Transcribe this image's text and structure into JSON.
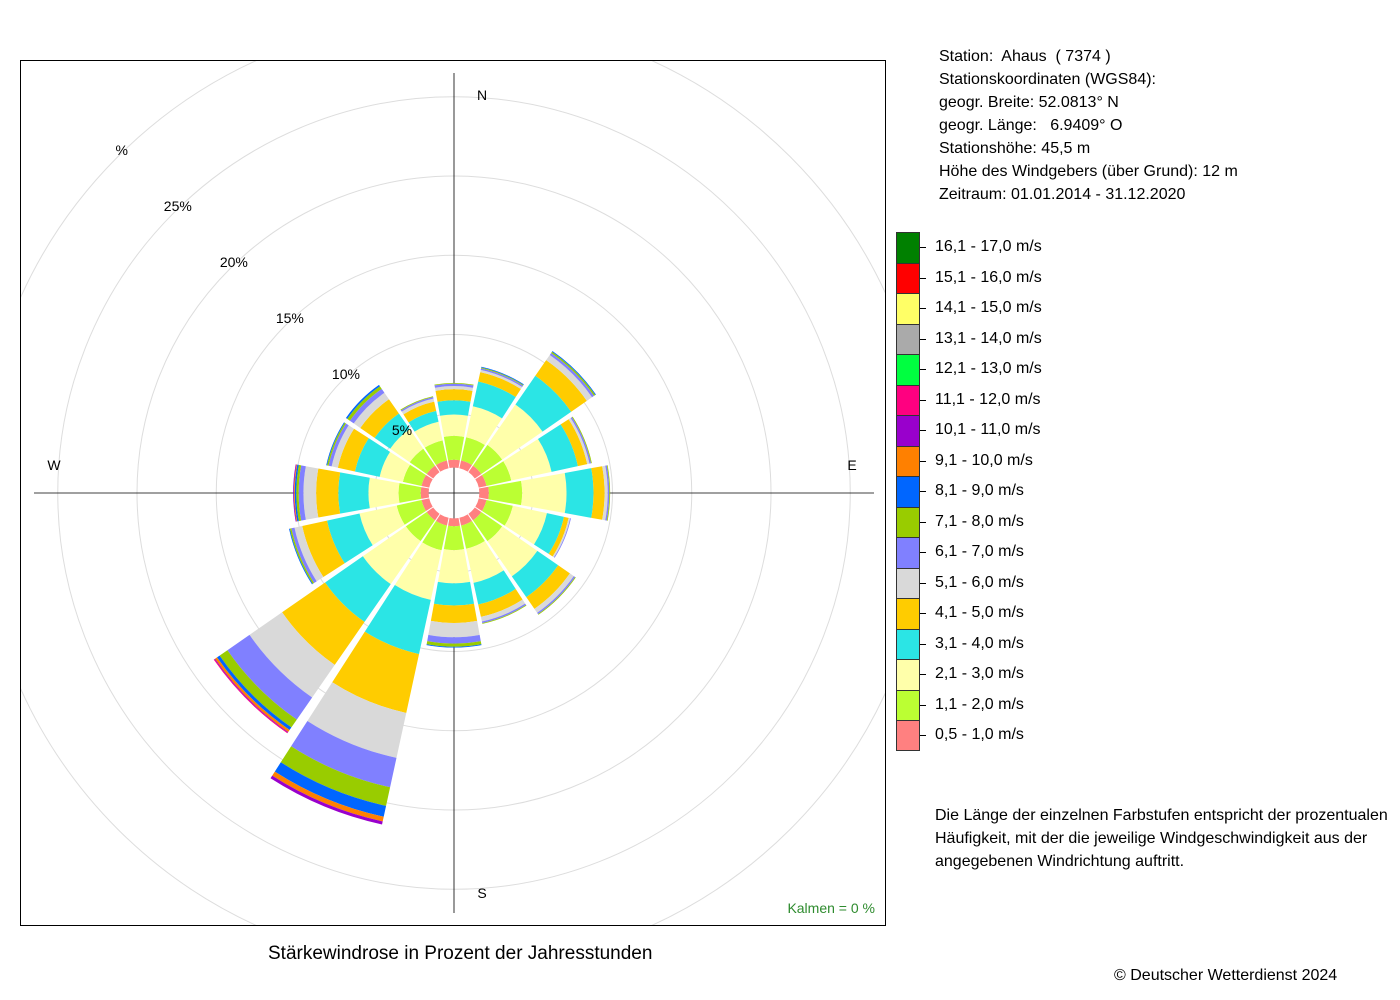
{
  "chart_data": {
    "type": "windrose",
    "title": "Stärkewindrose in Prozent der Jahresstunden",
    "directions": [
      "N",
      "NNE",
      "NE",
      "ENE",
      "E",
      "ESE",
      "SE",
      "SSE",
      "S",
      "SSW",
      "SW",
      "WSW",
      "W",
      "WNW",
      "NW",
      "NNW"
    ],
    "direction_labels": {
      "N": "N",
      "E": "E",
      "S": "S",
      "W": "W"
    },
    "radial_axis": {
      "unit": "%",
      "max": 30,
      "gridlines": [
        5,
        10,
        15,
        20,
        25,
        30
      ],
      "tick_labels": [
        "5%",
        "10%",
        "15%",
        "20%",
        "25%",
        "%"
      ]
    },
    "calm": "Kalmen  =  0 %",
    "speed_classes": [
      {
        "label": "0,5 - 1,0 m/s",
        "color": "#FF8080"
      },
      {
        "label": "1,1 - 2,0 m/s",
        "color": "#BBFF33"
      },
      {
        "label": "2,1 - 3,0 m/s",
        "color": "#FFFFAA"
      },
      {
        "label": "3,1 - 4,0 m/s",
        "color": "#2BE5E5"
      },
      {
        "label": "4,1 - 5,0 m/s",
        "color": "#FFCC00"
      },
      {
        "label": "5,1 - 6,0 m/s",
        "color": "#D9D9D9"
      },
      {
        "label": "6,1 - 7,0 m/s",
        "color": "#8080FF"
      },
      {
        "label": "7,1 - 8,0 m/s",
        "color": "#99CC00"
      },
      {
        "label": "8,1 - 9,0 m/s",
        "color": "#0066FF"
      },
      {
        "label": "9,1 - 10,0 m/s",
        "color": "#FF8000"
      },
      {
        "label": "10,1 - 11,0 m/s",
        "color": "#9900CC"
      },
      {
        "label": "11,1 - 12,0 m/s",
        "color": "#FF0080"
      },
      {
        "label": "12,1 - 13,0 m/s",
        "color": "#00FF40"
      },
      {
        "label": "13,1 - 14,0 m/s",
        "color": "#AAAAAA"
      },
      {
        "label": "14,1 - 15,0 m/s",
        "color": "#FFFF66"
      },
      {
        "label": "15,1 - 16,0 m/s",
        "color": "#FF0000"
      },
      {
        "label": "16,1 - 17,0 m/s",
        "color": "#008000"
      }
    ],
    "inner_radius": 1.6,
    "series": [
      {
        "direction": "N",
        "values": [
          0.5,
          1.5,
          1.35,
          0.9,
          0.7,
          0.2,
          0.15,
          0.05,
          0,
          0,
          0,
          0,
          0,
          0,
          0,
          0,
          0
        ]
      },
      {
        "direction": "NNE",
        "values": [
          0.5,
          1.5,
          2.0,
          1.6,
          0.6,
          0.15,
          0.1,
          0.05,
          0.05,
          0,
          0,
          0,
          0,
          0,
          0,
          0,
          0
        ]
      },
      {
        "direction": "NE",
        "values": [
          0.5,
          1.6,
          3.1,
          2.2,
          1.2,
          0.4,
          0.15,
          0.1,
          0.05,
          0,
          0,
          0,
          0,
          0,
          0,
          0,
          0
        ]
      },
      {
        "direction": "ENE",
        "values": [
          0.5,
          1.6,
          2.6,
          1.7,
          0.6,
          0.15,
          0.1,
          0.05,
          0,
          0,
          0,
          0,
          0,
          0,
          0,
          0,
          0
        ]
      },
      {
        "direction": "E",
        "values": [
          0.6,
          2.1,
          2.8,
          1.7,
          0.7,
          0.2,
          0.1,
          0.05,
          0,
          0,
          0,
          0,
          0,
          0,
          0,
          0,
          0
        ]
      },
      {
        "direction": "ESE",
        "values": [
          0.5,
          1.7,
          2.2,
          1.1,
          0.3,
          0.1,
          0.05,
          0,
          0,
          0,
          0,
          0,
          0,
          0,
          0,
          0,
          0
        ]
      },
      {
        "direction": "SE",
        "values": [
          0.5,
          1.6,
          2.7,
          1.6,
          0.9,
          0.3,
          0.1,
          0.05,
          0,
          0,
          0,
          0,
          0,
          0,
          0,
          0,
          0
        ]
      },
      {
        "direction": "SSE",
        "values": [
          0.5,
          1.5,
          2.2,
          1.4,
          0.8,
          0.3,
          0.1,
          0.05,
          0,
          0,
          0,
          0,
          0,
          0,
          0,
          0,
          0
        ]
      },
      {
        "direction": "S",
        "values": [
          0.5,
          1.5,
          2.1,
          1.4,
          1.1,
          0.9,
          0.4,
          0.2,
          0.05,
          0,
          0,
          0,
          0,
          0,
          0,
          0,
          0
        ]
      },
      {
        "direction": "SSW",
        "values": [
          0.5,
          1.6,
          3.2,
          3.5,
          3.8,
          2.9,
          1.9,
          1.2,
          0.7,
          0.3,
          0.2,
          0,
          0,
          0,
          0,
          0,
          0
        ]
      },
      {
        "direction": "SW",
        "values": [
          0.5,
          1.6,
          3.3,
          2.9,
          3.3,
          2.5,
          1.7,
          0.6,
          0.2,
          0.15,
          0.05,
          0.05,
          0,
          0,
          0,
          0,
          0
        ]
      },
      {
        "direction": "WSW",
        "values": [
          0.5,
          1.6,
          2.4,
          2.1,
          1.6,
          0.5,
          0.2,
          0.1,
          0.05,
          0,
          0,
          0,
          0,
          0,
          0,
          0,
          0
        ]
      },
      {
        "direction": "W",
        "values": [
          0.5,
          1.4,
          1.9,
          1.9,
          1.4,
          0.8,
          0.3,
          0.15,
          0.1,
          0.05,
          0.05,
          0,
          0,
          0,
          0,
          0,
          0
        ]
      },
      {
        "direction": "WNW",
        "values": [
          0.5,
          1.2,
          1.5,
          1.6,
          1.1,
          0.4,
          0.2,
          0.1,
          0.05,
          0,
          0,
          0,
          0,
          0,
          0,
          0,
          0
        ]
      },
      {
        "direction": "NW",
        "values": [
          0.5,
          1.3,
          1.5,
          1.2,
          1.1,
          0.5,
          0.3,
          0.2,
          0.1,
          0,
          0,
          0,
          0,
          0,
          0,
          0,
          0
        ]
      },
      {
        "direction": "NNW",
        "values": [
          0.5,
          1.3,
          1.2,
          0.7,
          0.6,
          0.2,
          0.1,
          0.05,
          0,
          0,
          0,
          0,
          0,
          0,
          0,
          0,
          0
        ]
      }
    ]
  },
  "station": {
    "line1": "Station:  Ahaus  ( 7374 )",
    "line2": "Stationskoordinaten (WGS84):",
    "line3": "geogr. Breite: 52.0813° N",
    "line4": "geogr. Länge:   6.9409° O",
    "line5": "Stationshöhe: 45,5 m",
    "line6": "Höhe des Windgebers (über Grund): 12 m",
    "line7": "Zeitraum: 01.01.2014 - 31.12.2020"
  },
  "explanation": {
    "line1": "Die Länge der einzelnen Farbstufen entspricht der prozentualen",
    "line2": "Häufigkeit, mit der die jeweilige Windgeschwindigkeit aus der",
    "line3": "angegebenen Windrichtung auftritt."
  },
  "caption": "Stärkewindrose in Prozent der Jahresstunden",
  "copyright": "© Deutscher Wetterdienst  2024"
}
